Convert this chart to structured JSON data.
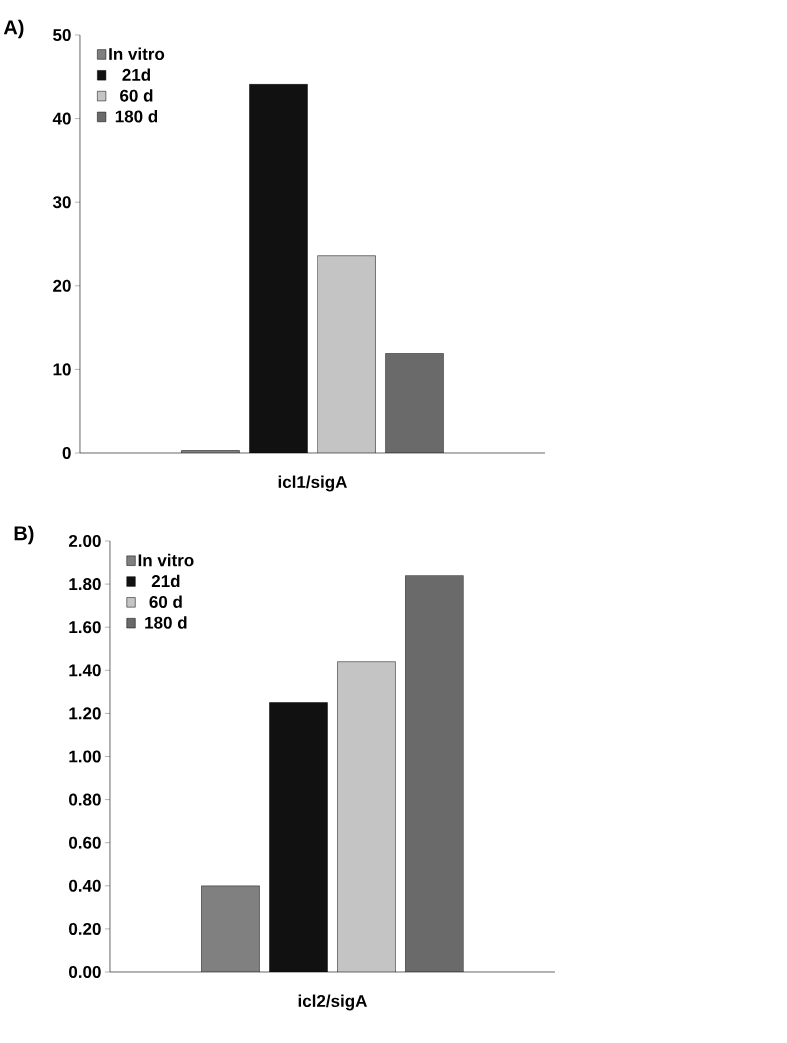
{
  "chart_data": [
    {
      "type": "bar",
      "title": "A)",
      "categories": [
        "icl1/sigA"
      ],
      "series": [
        {
          "name": "In vitro",
          "color": "#808080",
          "values": [
            0.3
          ]
        },
        {
          "name": "21d",
          "color": "#111111",
          "values": [
            44.1
          ]
        },
        {
          "name": "60 d",
          "color": "#c4c4c4",
          "values": [
            23.6
          ]
        },
        {
          "name": "180 d",
          "color": "#6a6a6a",
          "values": [
            11.9
          ]
        }
      ],
      "ylim": [
        0,
        50
      ],
      "yticks": [
        0,
        10,
        20,
        30,
        40,
        50
      ],
      "grid": false,
      "legend": "top left"
    },
    {
      "type": "bar",
      "title": "B)",
      "categories": [
        "icl2/sigA"
      ],
      "series": [
        {
          "name": "In vitro",
          "color": "#808080",
          "values": [
            0.4
          ]
        },
        {
          "name": "21d",
          "color": "#111111",
          "values": [
            1.25
          ]
        },
        {
          "name": "60 d",
          "color": "#c4c4c4",
          "values": [
            1.44
          ]
        },
        {
          "name": "180 d",
          "color": "#6a6a6a",
          "values": [
            1.84
          ]
        }
      ],
      "ylim": [
        0,
        2
      ],
      "yticks": [
        {
          "value": 0,
          "label": "0.00"
        },
        {
          "value": 0.2,
          "label": "0.20"
        },
        {
          "value": 0.4,
          "label": "0.40"
        },
        {
          "value": 0.6,
          "label": "0.60"
        },
        {
          "value": 0.8,
          "label": "0.80"
        },
        {
          "value": 1,
          "label": "1.00"
        },
        {
          "value": 1.2,
          "label": "1.20"
        },
        {
          "value": 1.4,
          "label": "1.40"
        },
        {
          "value": 1.6,
          "label": "1.60"
        },
        {
          "value": 1.8,
          "label": "1.80"
        },
        {
          "value": 2,
          "label": "2.00"
        }
      ],
      "grid": false,
      "legend": "top left"
    }
  ]
}
